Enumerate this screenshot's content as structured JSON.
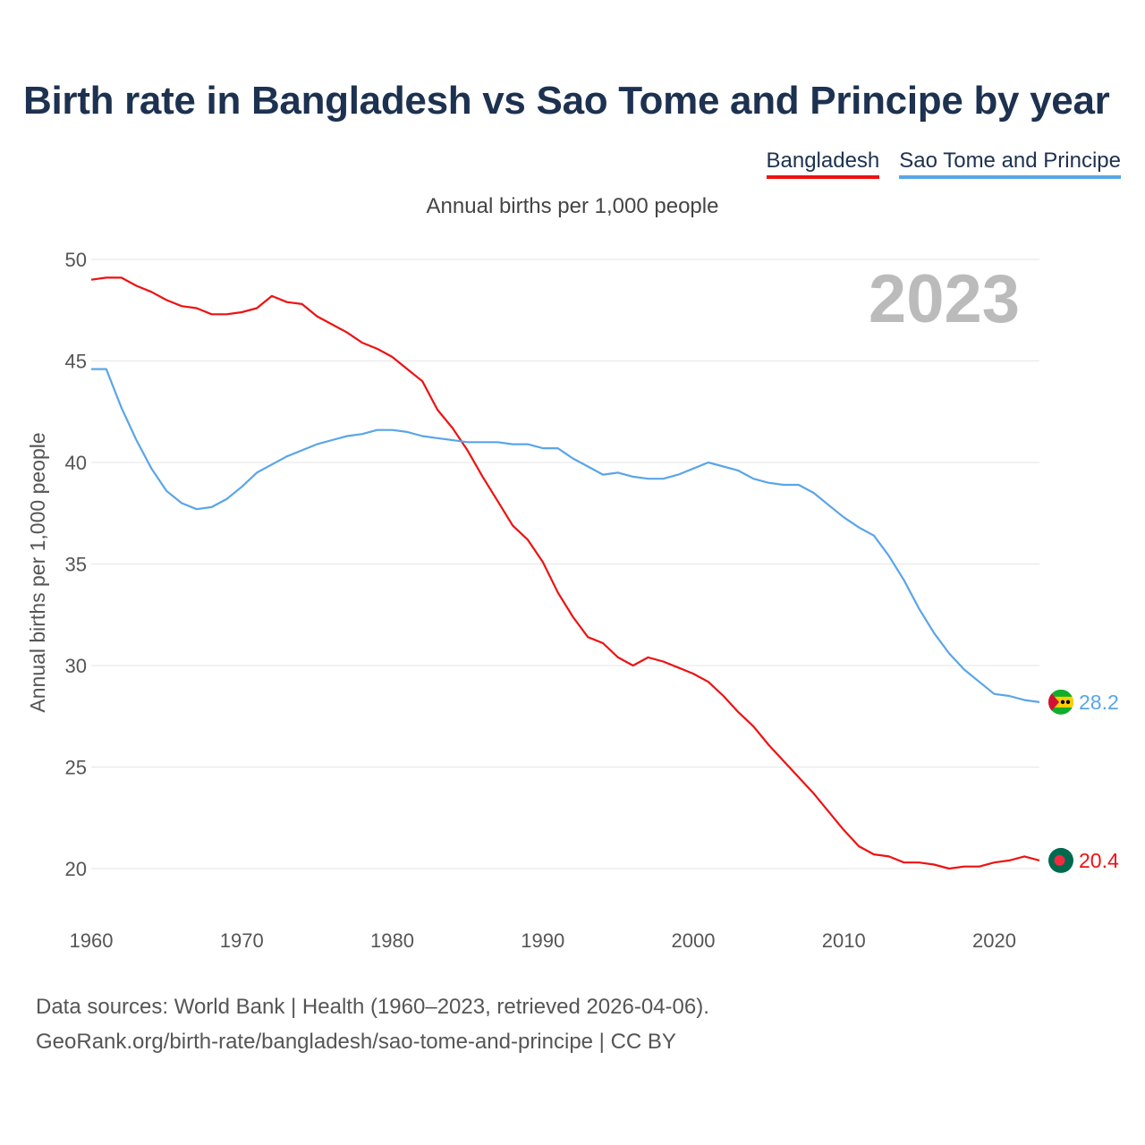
{
  "title": "Birth rate in Bangladesh vs Sao Tome and Principe by year",
  "subtitle": "Annual births per 1,000 people",
  "footer": {
    "line1": "Data sources: World Bank | Health (1960–2023, retrieved 2026-04-06).",
    "line2": "GeoRank.org/birth-rate/bangladesh/sao-tome-and-principe | CC BY"
  },
  "colors": {
    "bangladesh": "#ee1111",
    "sao_tome": "#5aa5e8",
    "grid": "#e6e6e6",
    "axis_text": "#555555",
    "year_watermark": "#bbbbbb"
  },
  "chart_data": {
    "type": "line",
    "title": "Birth rate in Bangladesh vs Sao Tome and Principe by year",
    "ylabel": "Annual births per 1,000 people",
    "xlabel": "",
    "xlim": [
      1960,
      2023
    ],
    "ylim": [
      18.5,
      50
    ],
    "yticks": [
      20,
      25,
      30,
      35,
      40,
      45,
      50
    ],
    "xticks": [
      1960,
      1970,
      1980,
      1990,
      2000,
      2010,
      2020
    ],
    "year_label": "2023",
    "grid": true,
    "x": [
      1960,
      1961,
      1962,
      1963,
      1964,
      1965,
      1966,
      1967,
      1968,
      1969,
      1970,
      1971,
      1972,
      1973,
      1974,
      1975,
      1976,
      1977,
      1978,
      1979,
      1980,
      1981,
      1982,
      1983,
      1984,
      1985,
      1986,
      1987,
      1988,
      1989,
      1990,
      1991,
      1992,
      1993,
      1994,
      1995,
      1996,
      1997,
      1998,
      1999,
      2000,
      2001,
      2002,
      2003,
      2004,
      2005,
      2006,
      2007,
      2008,
      2009,
      2010,
      2011,
      2012,
      2013,
      2014,
      2015,
      2016,
      2017,
      2018,
      2019,
      2020,
      2021,
      2022,
      2023
    ],
    "series": [
      {
        "name": "Bangladesh",
        "color": "#ee1111",
        "end_label": "20.4",
        "values": [
          49.0,
          49.1,
          49.1,
          48.7,
          48.4,
          48.0,
          47.7,
          47.6,
          47.3,
          47.3,
          47.4,
          47.6,
          48.2,
          47.9,
          47.8,
          47.2,
          46.8,
          46.4,
          45.9,
          45.6,
          45.2,
          44.6,
          44.0,
          42.6,
          41.7,
          40.6,
          39.3,
          38.1,
          36.9,
          36.2,
          35.1,
          33.6,
          32.4,
          31.4,
          31.1,
          30.4,
          30.0,
          30.4,
          30.2,
          29.9,
          29.6,
          29.2,
          28.5,
          27.7,
          27.0,
          26.1,
          25.3,
          24.5,
          23.7,
          22.8,
          21.9,
          21.1,
          20.7,
          20.6,
          20.3,
          20.3,
          20.2,
          20.0,
          20.1,
          20.1,
          20.3,
          20.4,
          20.6,
          20.4
        ]
      },
      {
        "name": "Sao Tome and Principe",
        "color": "#5aa5e8",
        "end_label": "28.2",
        "values": [
          44.6,
          44.6,
          42.7,
          41.1,
          39.7,
          38.6,
          38.0,
          37.7,
          37.8,
          38.2,
          38.8,
          39.5,
          39.9,
          40.3,
          40.6,
          40.9,
          41.1,
          41.3,
          41.4,
          41.6,
          41.6,
          41.5,
          41.3,
          41.2,
          41.1,
          41.0,
          41.0,
          41.0,
          40.9,
          40.9,
          40.7,
          40.7,
          40.2,
          39.8,
          39.4,
          39.5,
          39.3,
          39.2,
          39.2,
          39.4,
          39.7,
          40.0,
          39.8,
          39.6,
          39.2,
          39.0,
          38.9,
          38.9,
          38.5,
          37.9,
          37.3,
          36.8,
          36.4,
          35.4,
          34.2,
          32.8,
          31.6,
          30.6,
          29.8,
          29.2,
          28.6,
          28.5,
          28.3,
          28.2
        ]
      }
    ]
  }
}
